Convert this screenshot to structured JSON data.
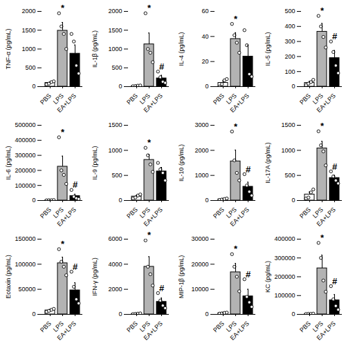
{
  "chart_data": [
    {
      "type": "bar",
      "y_label": "TNF-α (pg/mL)",
      "categories": [
        "PBS",
        "LPS",
        "EA+LPS"
      ],
      "values": [
        100,
        1487,
        877
      ],
      "errors": [
        20,
        220,
        230
      ],
      "points": [
        [
          60,
          80,
          120,
          140
        ],
        [
          1950,
          1600,
          1400,
          1000
        ],
        [
          1400,
          1200,
          560,
          350
        ]
      ],
      "colors": [
        "#ffffff",
        "#b3b3b3",
        "#000000"
      ],
      "ylim": [
        0,
        2000
      ],
      "yticks": [
        0,
        500,
        1000,
        1500,
        2000
      ],
      "annotations": [
        {
          "category": "LPS",
          "text": "*"
        }
      ]
    },
    {
      "type": "bar",
      "y_label": "IL-1β (pg/mL)",
      "categories": [
        "PBS",
        "LPS",
        "EA+LPS"
      ],
      "values": [
        20,
        1125,
        220
      ],
      "errors": [
        5,
        300,
        80
      ],
      "points": [
        [
          10,
          15,
          25,
          30
        ],
        [
          1950,
          1000,
          900,
          650
        ],
        [
          400,
          250,
          130,
          100
        ]
      ],
      "colors": [
        "#ffffff",
        "#b3b3b3",
        "#000000"
      ],
      "ylim": [
        0,
        2000
      ],
      "yticks": [
        0,
        500,
        1000,
        1500,
        2000
      ],
      "annotations": [
        {
          "category": "LPS",
          "text": "*"
        },
        {
          "category": "EA+LPS",
          "text": "#"
        }
      ]
    },
    {
      "type": "bar",
      "y_label": "IL-4 (pg/mL)",
      "categories": [
        "PBS",
        "LPS",
        "EA+LPS"
      ],
      "values": [
        3,
        38,
        24
      ],
      "errors": [
        1.5,
        5,
        9
      ],
      "points": [
        [
          0,
          2,
          5,
          6
        ],
        [
          50,
          41,
          35,
          27
        ],
        [
          45,
          33,
          10,
          8
        ]
      ],
      "colors": [
        "#ffffff",
        "#b3b3b3",
        "#000000"
      ],
      "ylim": [
        0,
        60
      ],
      "yticks": [
        0,
        20,
        40,
        60
      ],
      "annotations": [
        {
          "category": "LPS",
          "text": "*"
        }
      ]
    },
    {
      "type": "bar",
      "y_label": "IL-5 (pg/mL)",
      "categories": [
        "PBS",
        "LPS",
        "EA+LPS"
      ],
      "values": [
        25,
        365,
        190
      ],
      "errors": [
        10,
        55,
        50
      ],
      "points": [
        [
          10,
          20,
          30,
          45
        ],
        [
          470,
          400,
          330,
          260
        ],
        [
          300,
          230,
          140,
          90
        ]
      ],
      "colors": [
        "#ffffff",
        "#b3b3b3",
        "#000000"
      ],
      "ylim": [
        0,
        500
      ],
      "yticks": [
        0,
        100,
        200,
        300,
        400,
        500
      ],
      "annotations": [
        {
          "category": "LPS",
          "text": "*"
        },
        {
          "category": "EA+LPS",
          "text": "#"
        }
      ]
    },
    {
      "type": "bar",
      "y_label": "IL-6 (pg/mL)",
      "categories": [
        "PBS",
        "LPS",
        "EA+LPS"
      ],
      "values": [
        2000,
        225000,
        30000
      ],
      "errors": [
        500,
        70000,
        12000
      ],
      "points": [
        [
          1000,
          2000,
          2000,
          3000
        ],
        [
          420000,
          200000,
          170000,
          110000
        ],
        [
          70000,
          25000,
          15000,
          10000
        ]
      ],
      "colors": [
        "#ffffff",
        "#b3b3b3",
        "#000000"
      ],
      "ylim": [
        0,
        500000
      ],
      "yticks": [
        0,
        100000,
        200000,
        300000,
        400000,
        500000
      ],
      "annotations": [
        {
          "category": "LPS",
          "text": "*"
        },
        {
          "category": "EA+LPS",
          "text": "#"
        }
      ]
    },
    {
      "type": "bar",
      "y_label": "IL-9 (pg/mL)",
      "categories": [
        "PBS",
        "LPS",
        "EA+LPS"
      ],
      "values": [
        80,
        810,
        580
      ],
      "errors": [
        20,
        110,
        80
      ],
      "points": [
        [
          40,
          60,
          100,
          120
        ],
        [
          1050,
          900,
          720,
          570
        ],
        [
          750,
          620,
          550,
          400
        ]
      ],
      "colors": [
        "#ffffff",
        "#b3b3b3",
        "#000000"
      ],
      "ylim": [
        0,
        1500
      ],
      "yticks": [
        0,
        500,
        1000,
        1500
      ],
      "annotations": [
        {
          "category": "LPS",
          "text": "*"
        }
      ]
    },
    {
      "type": "bar",
      "y_label": "IL-10 (pg/mL)",
      "categories": [
        "PBS",
        "LPS",
        "EA+LPS"
      ],
      "values": [
        50,
        1562,
        550
      ],
      "errors": [
        15,
        450,
        180
      ],
      "points": [
        [
          20,
          40,
          60,
          80
        ],
        [
          2750,
          1600,
          1100,
          800
        ],
        [
          1050,
          600,
          350,
          200
        ]
      ],
      "colors": [
        "#ffffff",
        "#b3b3b3",
        "#000000"
      ],
      "ylim": [
        0,
        3000
      ],
      "yticks": [
        0,
        1000,
        2000,
        3000
      ],
      "annotations": [
        {
          "category": "LPS",
          "text": "*"
        },
        {
          "category": "EA+LPS",
          "text": "#"
        }
      ]
    },
    {
      "type": "bar",
      "y_label": "IL-17A (pg/mL)",
      "categories": [
        "PBS",
        "LPS",
        "EA+LPS"
      ],
      "values": [
        120,
        1040,
        450
      ],
      "errors": [
        50,
        140,
        50
      ],
      "points": [
        [
          40,
          60,
          160,
          220
        ],
        [
          1380,
          1100,
          980,
          700
        ],
        [
          580,
          480,
          400,
          340
        ]
      ],
      "colors": [
        "#ffffff",
        "#b3b3b3",
        "#000000"
      ],
      "ylim": [
        0,
        1500
      ],
      "yticks": [
        0,
        500,
        1000,
        1500
      ],
      "annotations": [
        {
          "category": "LPS",
          "text": "*"
        },
        {
          "category": "EA+LPS",
          "text": "#"
        }
      ]
    },
    {
      "type": "bar",
      "y_label": "Eotaxin (pg/mL)",
      "categories": [
        "PBS",
        "LPS",
        "EA+LPS"
      ],
      "values": [
        8000,
        102000,
        48000
      ],
      "errors": [
        2000,
        12000,
        15000
      ],
      "points": [
        [
          5000,
          7000,
          9000,
          11000
        ],
        [
          130000,
          105000,
          95000,
          78000
        ],
        [
          85000,
          55000,
          30000,
          22000
        ]
      ],
      "colors": [
        "#ffffff",
        "#b3b3b3",
        "#000000"
      ],
      "ylim": [
        0,
        150000
      ],
      "yticks": [
        0,
        50000,
        100000,
        150000
      ],
      "annotations": [
        {
          "category": "LPS",
          "text": "*"
        },
        {
          "category": "EA+LPS",
          "text": "#"
        }
      ]
    },
    {
      "type": "bar",
      "y_label": "IFN-γ (pg/mL)",
      "categories": [
        "PBS",
        "LPS",
        "EA+LPS"
      ],
      "values": [
        50,
        3800,
        1000
      ],
      "errors": [
        15,
        800,
        300
      ],
      "points": [
        [
          20,
          40,
          60,
          80
        ],
        [
          5900,
          3800,
          3200,
          2300
        ],
        [
          1700,
          1100,
          700,
          500
        ]
      ],
      "colors": [
        "#ffffff",
        "#b3b3b3",
        "#000000"
      ],
      "ylim": [
        0,
        6000
      ],
      "yticks": [
        0,
        2000,
        4000,
        6000
      ],
      "annotations": [
        {
          "category": "LPS",
          "text": "*"
        },
        {
          "category": "EA+LPS",
          "text": "#"
        }
      ]
    },
    {
      "type": "bar",
      "y_label": "MIP-1β (pg/mL)",
      "categories": [
        "PBS",
        "LPS",
        "EA+LPS"
      ],
      "values": [
        500,
        16800,
        7200
      ],
      "errors": [
        100,
        3500,
        2800
      ],
      "points": [
        [
          300,
          400,
          600,
          700
        ],
        [
          24000,
          19000,
          15000,
          9200
        ],
        [
          14000,
          7000,
          4800,
          3000
        ]
      ],
      "colors": [
        "#ffffff",
        "#b3b3b3",
        "#000000"
      ],
      "ylim": [
        0,
        30000
      ],
      "yticks": [
        0,
        10000,
        20000,
        30000
      ],
      "annotations": [
        {
          "category": "LPS",
          "text": "*"
        },
        {
          "category": "EA+LPS",
          "text": "#"
        }
      ]
    },
    {
      "type": "bar",
      "y_label": "KC (pg/mL)",
      "categories": [
        "PBS",
        "LPS",
        "EA+LPS"
      ],
      "values": [
        3000,
        245000,
        75000
      ],
      "errors": [
        500,
        70000,
        30000
      ],
      "points": [
        [
          2000,
          3000,
          3000,
          4000
        ],
        [
          380000,
          300000,
          180000,
          120000
        ],
        [
          150000,
          80000,
          45000,
          25000
        ]
      ],
      "colors": [
        "#ffffff",
        "#b3b3b3",
        "#000000"
      ],
      "ylim": [
        0,
        400000
      ],
      "yticks": [
        0,
        100000,
        200000,
        300000,
        400000
      ],
      "annotations": [
        {
          "category": "LPS",
          "text": "*"
        },
        {
          "category": "EA+LPS",
          "text": "#"
        }
      ]
    }
  ]
}
